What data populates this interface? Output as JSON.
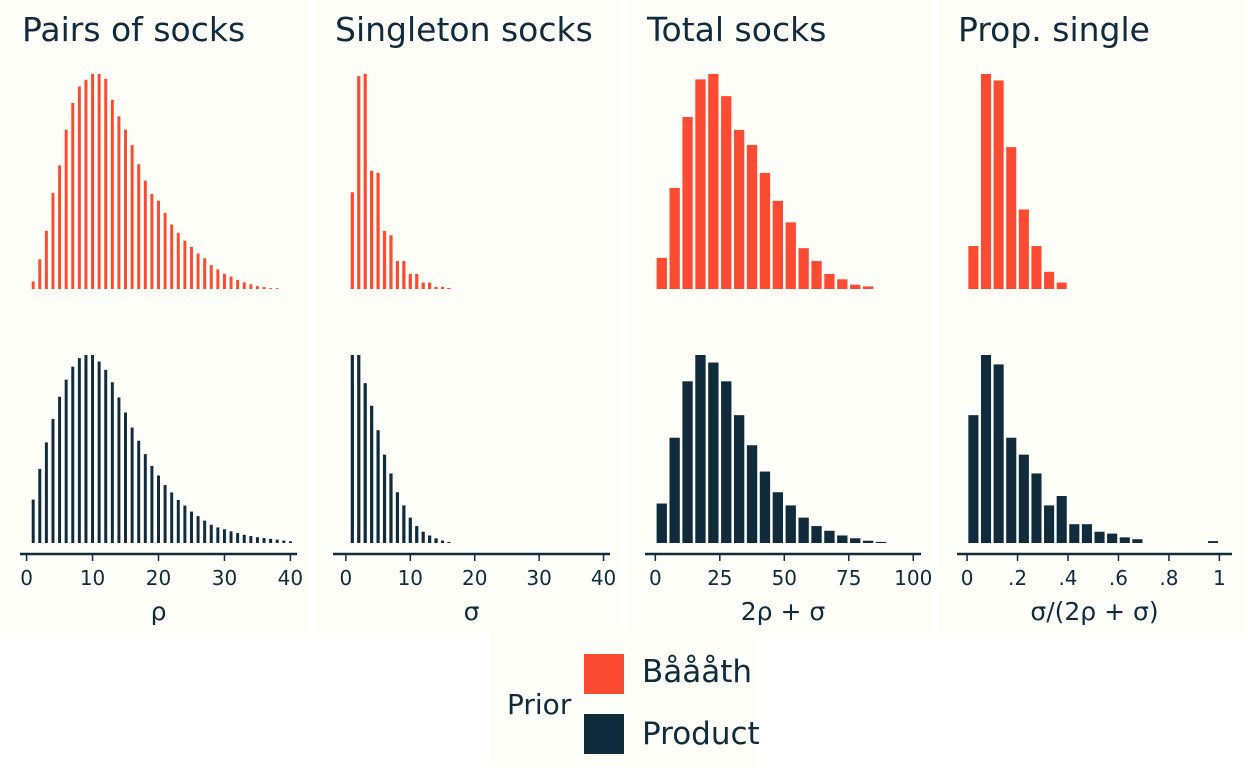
{
  "colors": {
    "baath": "#fb4b32",
    "product": "#0f2b3c",
    "panel_bg": "#fefef9",
    "axis": "#0f2b3c"
  },
  "legend": {
    "title": "Prior",
    "entries": [
      {
        "label": "Båååth",
        "color": "#fb4b32"
      },
      {
        "label": "Product",
        "color": "#0f2b3c"
      }
    ]
  },
  "chart_data": [
    {
      "type": "bar",
      "title": "Pairs of socks",
      "xlabel": "ρ",
      "xlim": [
        -1,
        41
      ],
      "bar_width": 0.45,
      "xticks": [
        0,
        10,
        20,
        30,
        40
      ],
      "xtick_labels": [
        "0",
        "10",
        "20",
        "30",
        "40"
      ],
      "series": [
        {
          "name": "Båååth",
          "x": [
            1,
            2,
            3,
            4,
            5,
            6,
            7,
            8,
            9,
            10,
            11,
            12,
            13,
            14,
            15,
            16,
            17,
            18,
            19,
            20,
            21,
            22,
            23,
            24,
            25,
            26,
            27,
            28,
            29,
            30,
            31,
            32,
            33,
            34,
            35,
            36,
            37,
            38
          ],
          "values": [
            0.035,
            0.138,
            0.271,
            0.447,
            0.575,
            0.741,
            0.865,
            0.942,
            0.973,
            1.0,
            1.0,
            0.978,
            0.88,
            0.803,
            0.741,
            0.669,
            0.58,
            0.504,
            0.442,
            0.411,
            0.354,
            0.3,
            0.261,
            0.225,
            0.196,
            0.165,
            0.143,
            0.111,
            0.091,
            0.071,
            0.058,
            0.042,
            0.031,
            0.022,
            0.013,
            0.009,
            0.004,
            0.004
          ]
        },
        {
          "name": "Product",
          "x": [
            1,
            2,
            3,
            4,
            5,
            6,
            7,
            8,
            9,
            10,
            11,
            12,
            13,
            14,
            15,
            16,
            17,
            18,
            19,
            20,
            21,
            22,
            23,
            24,
            25,
            26,
            27,
            28,
            29,
            30,
            31,
            32,
            33,
            34,
            35,
            36,
            37,
            38,
            39,
            40
          ],
          "values": [
            0.231,
            0.394,
            0.535,
            0.66,
            0.778,
            0.869,
            0.938,
            0.983,
            1.0,
            1.0,
            0.965,
            0.921,
            0.855,
            0.774,
            0.694,
            0.614,
            0.544,
            0.473,
            0.41,
            0.359,
            0.308,
            0.269,
            0.229,
            0.199,
            0.167,
            0.143,
            0.119,
            0.097,
            0.083,
            0.073,
            0.062,
            0.053,
            0.044,
            0.037,
            0.031,
            0.026,
            0.022,
            0.018,
            0.013,
            0.009
          ]
        }
      ]
    },
    {
      "type": "bar",
      "title": "Singleton socks",
      "xlabel": "σ",
      "xlim": [
        -2,
        41
      ],
      "bar_width": 0.5,
      "xticks": [
        0,
        10,
        20,
        30,
        40
      ],
      "xtick_labels": [
        "0",
        "10",
        "20",
        "30",
        "40"
      ],
      "series": [
        {
          "name": "Båååth",
          "x": [
            1,
            2,
            3,
            4,
            5,
            6,
            7,
            8,
            9,
            10,
            11,
            12,
            13,
            14,
            15,
            16
          ],
          "values": [
            0.45,
            0.99,
            1.0,
            0.55,
            0.54,
            0.27,
            0.25,
            0.13,
            0.13,
            0.07,
            0.07,
            0.03,
            0.03,
            0.01,
            0.01,
            0.005
          ]
        },
        {
          "name": "Product",
          "x": [
            1,
            2,
            3,
            4,
            5,
            6,
            7,
            8,
            9,
            10,
            11,
            12,
            13,
            14,
            15,
            16
          ],
          "values": [
            1.0,
            1.0,
            0.85,
            0.73,
            0.6,
            0.47,
            0.37,
            0.27,
            0.2,
            0.135,
            0.09,
            0.06,
            0.04,
            0.025,
            0.013,
            0.006
          ]
        }
      ]
    },
    {
      "type": "bar",
      "title": "Total socks",
      "xlabel": "2ρ + σ",
      "xlim": [
        -4,
        103
      ],
      "bar_width": 4,
      "xticks": [
        0,
        25,
        50,
        75,
        100
      ],
      "xtick_labels": [
        "0",
        "25",
        "50",
        "75",
        "100"
      ],
      "series": [
        {
          "name": "Båååth",
          "x": [
            2.5,
            7.5,
            12.5,
            17.5,
            22.5,
            27.5,
            32.5,
            37.5,
            42.5,
            47.5,
            52.5,
            57.5,
            62.5,
            67.5,
            72.5,
            77.5,
            82.5
          ],
          "values": [
            0.145,
            0.47,
            0.8,
            0.975,
            1.0,
            0.897,
            0.74,
            0.67,
            0.54,
            0.41,
            0.31,
            0.19,
            0.13,
            0.07,
            0.045,
            0.02,
            0.012
          ]
        },
        {
          "name": "Product",
          "x": [
            2.5,
            7.5,
            12.5,
            17.5,
            22.5,
            27.5,
            32.5,
            37.5,
            42.5,
            47.5,
            52.5,
            57.5,
            62.5,
            67.5,
            72.5,
            77.5,
            82.5,
            87.5
          ],
          "values": [
            0.21,
            0.56,
            0.86,
            1.0,
            0.96,
            0.86,
            0.68,
            0.52,
            0.38,
            0.27,
            0.2,
            0.135,
            0.09,
            0.065,
            0.04,
            0.025,
            0.012,
            0.006
          ]
        }
      ]
    },
    {
      "type": "bar",
      "title": "Prop. single",
      "xlabel": "σ/(2ρ + σ)",
      "xlim": [
        -0.04,
        1.05
      ],
      "bar_width": 0.04,
      "xticks": [
        0,
        0.2,
        0.4,
        0.6,
        0.8,
        1.0
      ],
      "xtick_labels": [
        "0",
        ".2",
        ".4",
        ".6",
        ".8",
        "1"
      ],
      "series": [
        {
          "name": "Båååth",
          "x": [
            0.025,
            0.075,
            0.125,
            0.175,
            0.225,
            0.275,
            0.325,
            0.375
          ],
          "values": [
            0.2,
            1.0,
            0.97,
            0.66,
            0.37,
            0.2,
            0.08,
            0.03
          ]
        },
        {
          "name": "Product",
          "x": [
            0.025,
            0.075,
            0.125,
            0.175,
            0.225,
            0.275,
            0.325,
            0.375,
            0.425,
            0.475,
            0.525,
            0.575,
            0.625,
            0.675,
            0.975
          ],
          "values": [
            0.68,
            1.0,
            0.95,
            0.56,
            0.47,
            0.37,
            0.2,
            0.25,
            0.1,
            0.1,
            0.06,
            0.05,
            0.03,
            0.02,
            0.01
          ]
        }
      ]
    }
  ]
}
